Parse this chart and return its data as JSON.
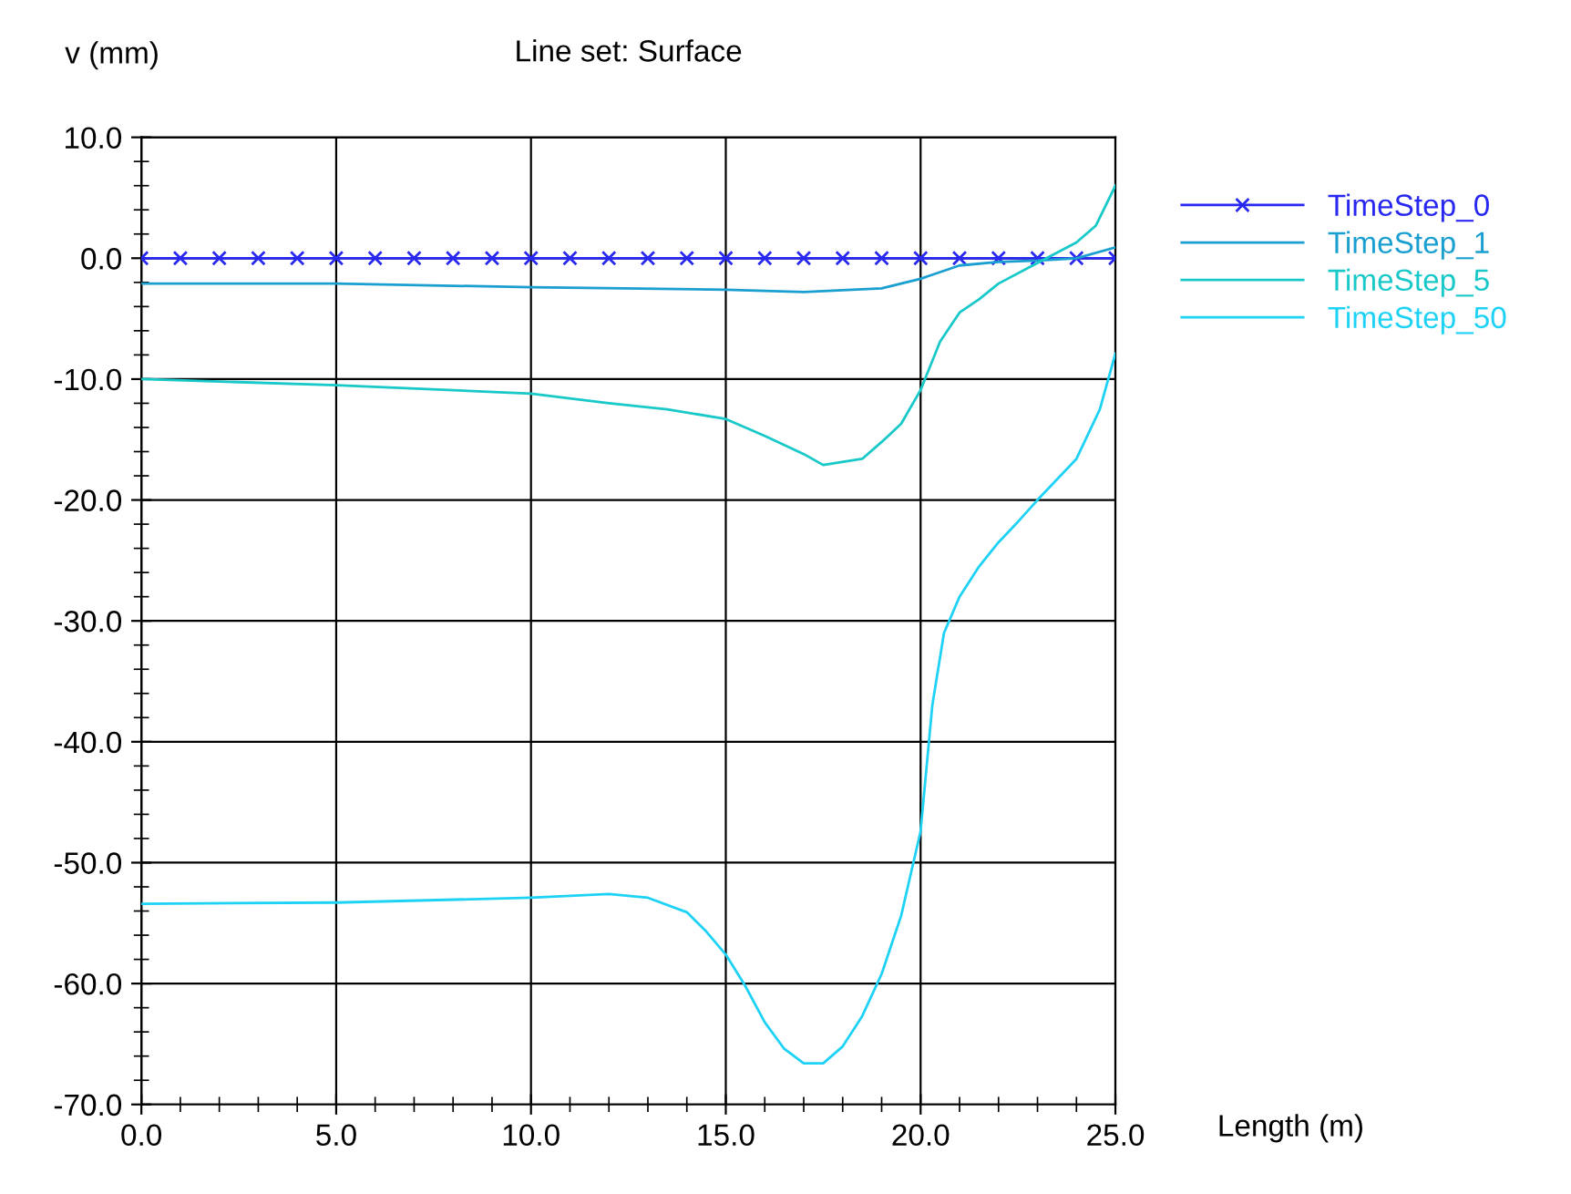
{
  "chart_data": {
    "type": "line",
    "title": "Line set: Surface",
    "xlabel": "Length (m)",
    "ylabel": "v (mm)",
    "xlim": [
      0,
      25
    ],
    "xticks": [
      {
        "value": 0,
        "label": "0.0"
      },
      {
        "value": 5,
        "label": "5.0"
      },
      {
        "value": 10,
        "label": "10.0"
      },
      {
        "value": 15,
        "label": "15.0"
      },
      {
        "value": 20,
        "label": "20.0"
      },
      {
        "value": 25,
        "label": "25.0"
      }
    ],
    "ylim": [
      -70,
      10
    ],
    "yticks": [
      {
        "value": -70,
        "label": "-70.0"
      },
      {
        "value": -60,
        "label": "-60.0"
      },
      {
        "value": -50,
        "label": "-50.0"
      },
      {
        "value": -40,
        "label": "-40.0"
      },
      {
        "value": -30,
        "label": "-30.0"
      },
      {
        "value": -20,
        "label": "-20.0"
      },
      {
        "value": -10,
        "label": "-10.0"
      },
      {
        "value": 0,
        "label": "0.0"
      },
      {
        "value": 10,
        "label": "10.0"
      }
    ],
    "grid": true,
    "legend": "right",
    "line_style": "solid",
    "series": [
      {
        "name": "TimeStep_0",
        "color": "#2828f0",
        "marker": "cross",
        "x": [
          0,
          1,
          2,
          3,
          4,
          5,
          6,
          7,
          8,
          9,
          10,
          11,
          12,
          13,
          14,
          15,
          16,
          17,
          18,
          19,
          20,
          21,
          22,
          23,
          24,
          25
        ],
        "values": [
          0,
          0,
          0,
          0,
          0,
          0,
          0,
          0,
          0,
          0,
          0,
          0,
          0,
          0,
          0,
          0,
          0,
          0,
          0,
          0,
          0,
          0,
          0,
          0,
          0,
          0
        ]
      },
      {
        "name": "TimeStep_1",
        "color": "#1a9fd0",
        "marker": "none",
        "x": [
          0,
          5,
          10,
          15,
          17,
          19,
          20,
          21,
          22,
          23,
          24,
          25
        ],
        "values": [
          -2.1,
          -2.1,
          -2.4,
          -2.6,
          -2.8,
          -2.5,
          -1.7,
          -0.6,
          -0.3,
          -0.2,
          0.0,
          0.9
        ]
      },
      {
        "name": "TimeStep_5",
        "color": "#19c8c8",
        "marker": "none",
        "x": [
          0,
          5,
          10,
          12,
          13.5,
          15,
          16,
          17,
          17.5,
          18.5,
          19,
          19.5,
          20,
          20.5,
          21,
          21.5,
          22,
          23,
          24,
          24.5,
          25
        ],
        "values": [
          -10.0,
          -10.5,
          -11.2,
          -12.0,
          -12.5,
          -13.3,
          -14.7,
          -16.2,
          -17.1,
          -16.6,
          -15.2,
          -13.7,
          -10.9,
          -6.9,
          -4.5,
          -3.4,
          -2.1,
          -0.4,
          1.3,
          2.7,
          6.0
        ]
      },
      {
        "name": "TimeStep_50",
        "color": "#1ed2f5",
        "marker": "none",
        "x": [
          0,
          5,
          10,
          12,
          13,
          14,
          14.5,
          15,
          15.5,
          16,
          16.5,
          17,
          17.5,
          18,
          18.5,
          19,
          19.5,
          20,
          20.3,
          20.6,
          21,
          21.5,
          22,
          22.5,
          23,
          24,
          24.6,
          25
        ],
        "values": [
          -53.4,
          -53.3,
          -52.9,
          -52.6,
          -52.9,
          -54.1,
          -55.7,
          -57.6,
          -60.2,
          -63.2,
          -65.4,
          -66.6,
          -66.6,
          -65.2,
          -62.7,
          -59.2,
          -54.4,
          -47.4,
          -37,
          -31,
          -28,
          -25.5,
          -23.5,
          -21.8,
          -20.0,
          -16.6,
          -12.5,
          -7.9
        ]
      }
    ]
  }
}
